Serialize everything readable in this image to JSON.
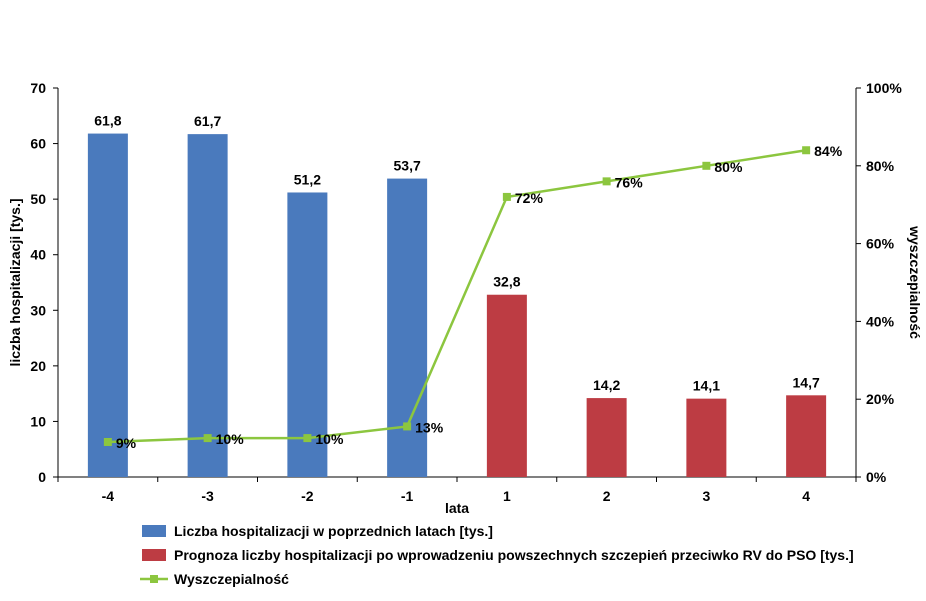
{
  "chart_data": {
    "type": "bar",
    "x_categories": [
      "-4",
      "-3",
      "-2",
      "-1",
      "1",
      "2",
      "3",
      "4"
    ],
    "xlabel": "lata",
    "ylabel": "liczba hospitalizacji [tys.]",
    "ylabel_right": "wyszczepialność",
    "ylim": [
      0,
      70
    ],
    "y_ticks": [
      "0",
      "10",
      "20",
      "30",
      "40",
      "50",
      "60",
      "70"
    ],
    "ylim_right": [
      0,
      100
    ],
    "y_ticks_right": [
      "0%",
      "20%",
      "40%",
      "60%",
      "80%",
      "100%"
    ],
    "grid": false,
    "legend_position": "bottom",
    "series": [
      {
        "name": "Liczba hospitalizacji w poprzednich latach [tys.]",
        "kind": "bar",
        "axis": "left",
        "color": "#4a7abd",
        "values": [
          61.8,
          61.7,
          51.2,
          53.7,
          null,
          null,
          null,
          null
        ],
        "labels": [
          "61,8",
          "61,7",
          "51,2",
          "53,7",
          "",
          "",
          "",
          ""
        ]
      },
      {
        "name": "Prognoza liczby hospitalizacji po wprowadzeniu powszechnych szczepień przeciwko RV do PSO [tys.]",
        "kind": "bar",
        "axis": "left",
        "color": "#bd3c43",
        "values": [
          null,
          null,
          null,
          null,
          32.8,
          14.2,
          14.1,
          14.7
        ],
        "labels": [
          "",
          "",
          "",
          "",
          "32,8",
          "14,2",
          "14,1",
          "14,7"
        ]
      },
      {
        "name": "Wyszczepialność",
        "kind": "line",
        "axis": "right",
        "color": "#8cc63f",
        "values": [
          9,
          10,
          10,
          13,
          72,
          76,
          80,
          84
        ],
        "labels": [
          "9%",
          "10%",
          "10%",
          "13%",
          "72%",
          "76%",
          "80%",
          "84%"
        ]
      }
    ]
  }
}
